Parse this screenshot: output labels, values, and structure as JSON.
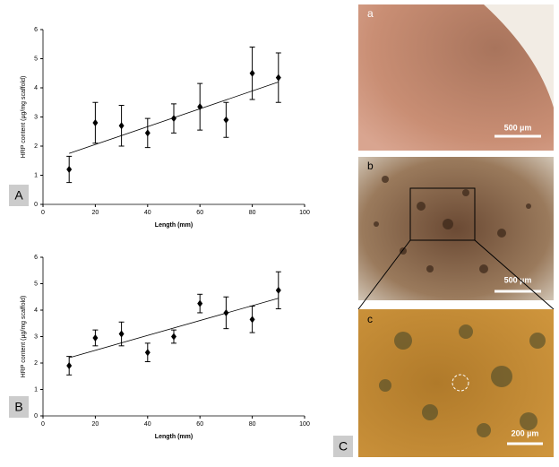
{
  "chart_data": [
    {
      "type": "scatter",
      "panel": "A",
      "xlabel": "Length (mm)",
      "ylabel": "HRP content (µg/mg scaffold)",
      "xlim": [
        0,
        100
      ],
      "xticks": [
        0,
        20,
        40,
        60,
        80,
        100
      ],
      "ylim": [
        0,
        6
      ],
      "yticks": [
        0,
        1,
        2,
        3,
        4,
        5,
        6
      ],
      "x": [
        10,
        20,
        30,
        40,
        50,
        60,
        70,
        80,
        90
      ],
      "series": [
        {
          "color": "#000000",
          "values": [
            1.2,
            2.8,
            2.7,
            2.45,
            2.95,
            3.35,
            2.9,
            4.5,
            4.35
          ],
          "errors": [
            0.45,
            0.7,
            0.7,
            0.5,
            0.5,
            0.8,
            0.6,
            0.9,
            0.85
          ]
        }
      ],
      "trendline": {
        "x": [
          10,
          90
        ],
        "values": [
          1.75,
          4.2
        ]
      }
    },
    {
      "type": "scatter",
      "panel": "B",
      "xlabel": "Length (mm)",
      "ylabel": "HRP content (µg/mg scaffold)",
      "xlim": [
        0,
        100
      ],
      "xticks": [
        0,
        20,
        40,
        60,
        80,
        100
      ],
      "ylim": [
        0,
        6
      ],
      "yticks": [
        0,
        1,
        2,
        3,
        4,
        5,
        6
      ],
      "x": [
        10,
        20,
        30,
        40,
        50,
        60,
        70,
        80,
        90
      ],
      "series": [
        {
          "color": "#000000",
          "values": [
            1.9,
            2.95,
            3.1,
            2.4,
            3.0,
            4.25,
            3.9,
            3.65,
            4.75
          ],
          "errors": [
            0.35,
            0.3,
            0.45,
            0.35,
            0.25,
            0.35,
            0.6,
            0.5,
            0.7
          ]
        }
      ],
      "trendline": {
        "x": [
          10,
          90
        ],
        "values": [
          2.2,
          4.45
        ]
      }
    }
  ],
  "images": [
    {
      "label": "a",
      "scale_bar": "500 µm"
    },
    {
      "label": "b",
      "scale_bar": "500 µm"
    },
    {
      "label": "c",
      "scale_bar": "200 µm"
    }
  ],
  "panel_c": "C"
}
